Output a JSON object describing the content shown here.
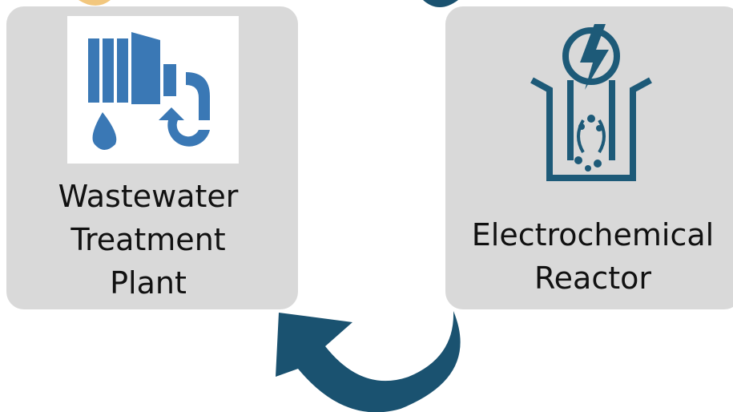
{
  "nodes": [
    {
      "label": [
        "Wastewater",
        "Treatment",
        "Plant"
      ]
    },
    {
      "label": [
        "Electrochemical",
        "Reactor"
      ]
    }
  ]
}
